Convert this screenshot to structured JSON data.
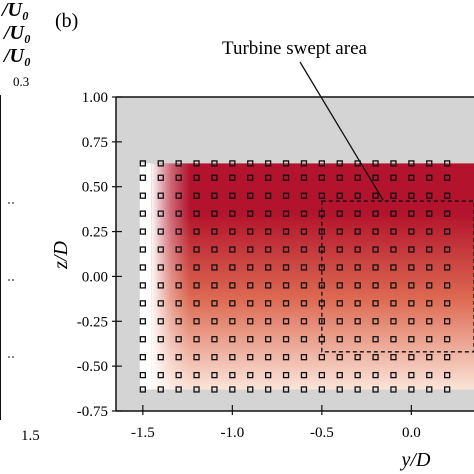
{
  "left_panel_fragment": {
    "legend_lines": [
      "/U₀",
      "/U₀",
      "/U₀"
    ],
    "top_tick": "0.3",
    "bottom_tick": "1.5"
  },
  "panel_label": "(b)",
  "annotation": "Turbine swept area",
  "colors": {
    "background_gray": "#d4d4d4",
    "field_dark": "#b3132c",
    "field_mid": "#dd6a52",
    "field_light": "#fbe4d9",
    "marker_stroke": "#111111",
    "swept_box": "#111111"
  },
  "chart_data": {
    "type": "heatmap",
    "title": "",
    "xlabel": "y/D",
    "ylabel": "z/D",
    "xlim": [
      -1.65,
      0.35
    ],
    "ylim": [
      -0.75,
      1.0
    ],
    "x_ticks": [
      -1.5,
      -1.0,
      -0.5,
      0.0
    ],
    "x_tick_labels": [
      "-1.5",
      "-1.0",
      "-0.5",
      "0.0"
    ],
    "y_ticks": [
      1.0,
      0.75,
      0.5,
      0.25,
      0.0,
      -0.25,
      -0.5,
      -0.75
    ],
    "y_tick_labels": [
      "1.00",
      "0.75",
      "0.50",
      "0.25",
      "0.00",
      "-0.25",
      "-0.50",
      "-0.75"
    ],
    "field_extent": {
      "y_min": -1.45,
      "y_max": 0.35,
      "z_min": -0.63,
      "z_max": 0.63
    },
    "measurement_points": {
      "y": [
        -1.5,
        -1.4,
        -1.3,
        -1.2,
        -1.1,
        -1.0,
        -0.9,
        -0.8,
        -0.7,
        -0.6,
        -0.5,
        -0.4,
        -0.3,
        -0.2,
        -0.1,
        0.0,
        0.1,
        0.2
      ],
      "z": [
        0.63,
        0.55,
        0.45,
        0.35,
        0.25,
        0.15,
        0.05,
        -0.05,
        -0.15,
        -0.25,
        -0.35,
        -0.45,
        -0.55,
        -0.63
      ]
    },
    "swept_area": {
      "y_min": -0.5,
      "y_max": 0.35,
      "z_min": -0.42,
      "z_max": 0.42
    }
  }
}
